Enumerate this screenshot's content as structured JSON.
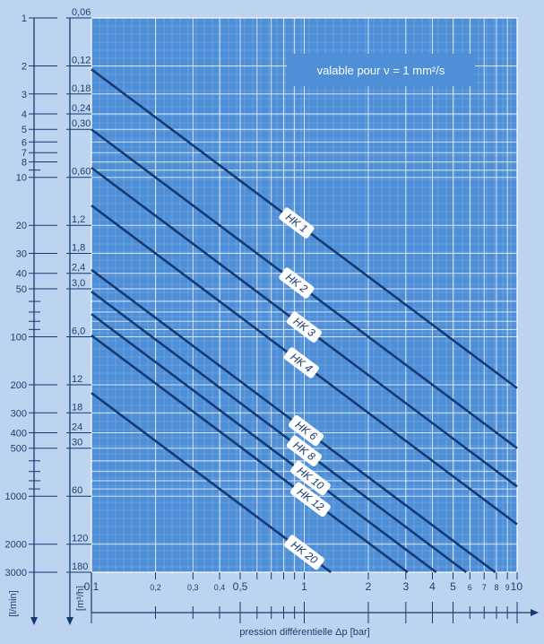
{
  "chart_data": {
    "type": "line",
    "annotation": "valable pour ν = 1 mm²/s",
    "xlabel": "pression différentielle Δp [bar]",
    "x_scale": "log",
    "y_scale": "log",
    "xlim": [
      0.1,
      10
    ],
    "ylim_l_min": [
      1,
      3000
    ],
    "x_ticks": [
      {
        "v": 0.1,
        "t": "0,1",
        "major": true
      },
      {
        "v": 0.2,
        "t": "0,2",
        "major": false
      },
      {
        "v": 0.3,
        "t": "0,3",
        "major": false
      },
      {
        "v": 0.4,
        "t": "0,4",
        "major": false
      },
      {
        "v": 0.5,
        "t": "0,5",
        "major": true
      },
      {
        "v": 0.6,
        "t": "",
        "major": false
      },
      {
        "v": 0.7,
        "t": "",
        "major": false
      },
      {
        "v": 0.8,
        "t": "",
        "major": false
      },
      {
        "v": 0.9,
        "t": "",
        "major": false
      },
      {
        "v": 1,
        "t": "1",
        "major": true
      },
      {
        "v": 2,
        "t": "2",
        "major": true
      },
      {
        "v": 3,
        "t": "3",
        "major": true
      },
      {
        "v": 4,
        "t": "4",
        "major": true
      },
      {
        "v": 5,
        "t": "5",
        "major": true
      },
      {
        "v": 6,
        "t": "6",
        "major": false
      },
      {
        "v": 7,
        "t": "7",
        "major": false
      },
      {
        "v": 8,
        "t": "8",
        "major": false
      },
      {
        "v": 9,
        "t": "9",
        "major": false
      },
      {
        "v": 10,
        "t": "10",
        "major": true
      }
    ],
    "y_axis_l_min": {
      "unit": "[l/min]",
      "ticks": [
        {
          "v": 1,
          "t": "1"
        },
        {
          "v": 2,
          "t": "2"
        },
        {
          "v": 3,
          "t": "3"
        },
        {
          "v": 4,
          "t": "4"
        },
        {
          "v": 5,
          "t": "5"
        },
        {
          "v": 6,
          "t": "6"
        },
        {
          "v": 7,
          "t": "7"
        },
        {
          "v": 8,
          "t": "8"
        },
        {
          "v": 9,
          "t": ""
        },
        {
          "v": 10,
          "t": "10"
        },
        {
          "v": 20,
          "t": "20"
        },
        {
          "v": 30,
          "t": "30"
        },
        {
          "v": 40,
          "t": "40"
        },
        {
          "v": 50,
          "t": "50"
        },
        {
          "v": 60,
          "t": ""
        },
        {
          "v": 70,
          "t": ""
        },
        {
          "v": 80,
          "t": ""
        },
        {
          "v": 90,
          "t": ""
        },
        {
          "v": 100,
          "t": "100"
        },
        {
          "v": 200,
          "t": "200"
        },
        {
          "v": 300,
          "t": "300"
        },
        {
          "v": 400,
          "t": "400"
        },
        {
          "v": 500,
          "t": "500"
        },
        {
          "v": 600,
          "t": ""
        },
        {
          "v": 700,
          "t": ""
        },
        {
          "v": 800,
          "t": ""
        },
        {
          "v": 900,
          "t": ""
        },
        {
          "v": 1000,
          "t": "1000"
        },
        {
          "v": 2000,
          "t": "2000"
        },
        {
          "v": 3000,
          "t": "3000"
        }
      ]
    },
    "y_axis_m3_h": {
      "unit": "[m³/h]",
      "ticks": [
        {
          "v": 1,
          "t": "0,06"
        },
        {
          "v": 2,
          "t": "0,12"
        },
        {
          "v": 3,
          "t": "0,18"
        },
        {
          "v": 4,
          "t": "0,24"
        },
        {
          "v": 5,
          "t": "0,30"
        },
        {
          "v": 10,
          "t": "0,60"
        },
        {
          "v": 20,
          "t": "1,2"
        },
        {
          "v": 30,
          "t": "1,8"
        },
        {
          "v": 40,
          "t": "2,4"
        },
        {
          "v": 50,
          "t": "3,0"
        },
        {
          "v": 100,
          "t": "6,0"
        },
        {
          "v": 200,
          "t": "12"
        },
        {
          "v": 300,
          "t": "18"
        },
        {
          "v": 400,
          "t": "24"
        },
        {
          "v": 500,
          "t": "30"
        },
        {
          "v": 1000,
          "t": "60"
        },
        {
          "v": 2000,
          "t": "120"
        },
        {
          "v": 3000,
          "t": "180"
        }
      ]
    },
    "series": [
      {
        "name": "HK 1",
        "x": [
          0.1,
          10
        ],
        "y": [
          2.1,
          210
        ],
        "label_x": 0.92
      },
      {
        "name": "HK 2",
        "x": [
          0.1,
          10
        ],
        "y": [
          5.0,
          500
        ],
        "label_x": 0.92
      },
      {
        "name": "HK 3",
        "x": [
          0.1,
          10
        ],
        "y": [
          8.7,
          870
        ],
        "label_x": 1.0
      },
      {
        "name": "HK 4",
        "x": [
          0.1,
          10
        ],
        "y": [
          15,
          1500
        ],
        "label_x": 0.97
      },
      {
        "name": "HK 6",
        "x": [
          0.1,
          10
        ],
        "y": [
          38,
          3800
        ],
        "label_x": 1.02
      },
      {
        "name": "HK 8",
        "x": [
          0.1,
          10
        ],
        "y": [
          52,
          5200
        ],
        "label_x": 1.0
      },
      {
        "name": "HK 10",
        "x": [
          0.1,
          10
        ],
        "y": [
          72,
          7200
        ],
        "label_x": 1.07
      },
      {
        "name": "HK 12",
        "x": [
          0.1,
          10
        ],
        "y": [
          98,
          9800
        ],
        "label_x": 1.07
      },
      {
        "name": "HK 20",
        "x": [
          0.1,
          10
        ],
        "y": [
          225,
          22500
        ],
        "label_x": 1.0
      }
    ],
    "grid": true,
    "colors": {
      "plot_bg": "#4e8fd8",
      "page_bg": "#bcd4ef",
      "line": "#143a72",
      "grid": "#ffffff",
      "text": "#1c3f6e"
    }
  }
}
